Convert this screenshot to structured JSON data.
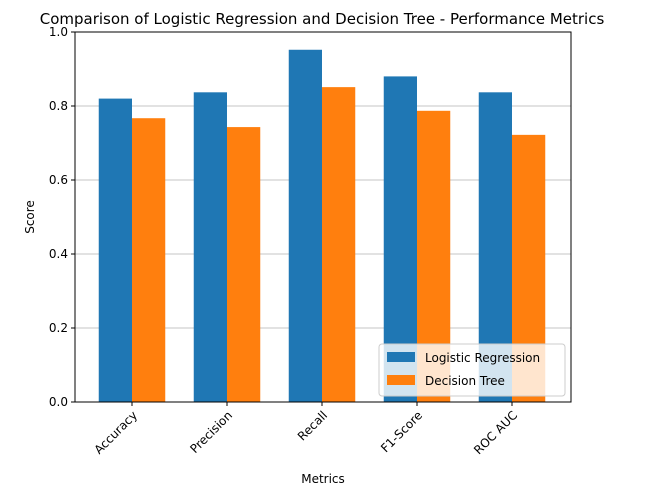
{
  "chart_data": {
    "type": "bar",
    "title": "Comparison of Logistic Regression and Decision Tree - Performance Metrics",
    "xlabel": "Metrics",
    "ylabel": "Score",
    "categories": [
      "Accuracy",
      "Precision",
      "Recall",
      "F1-Score",
      "ROC AUC"
    ],
    "series": [
      {
        "name": "Logistic Regression",
        "color": "#1f77b4",
        "values": [
          0.82,
          0.837,
          0.952,
          0.88,
          0.837
        ]
      },
      {
        "name": "Decision Tree",
        "color": "#ff7f0e",
        "values": [
          0.767,
          0.743,
          0.851,
          0.787,
          0.722
        ]
      }
    ],
    "ylim": [
      0,
      1.0
    ],
    "yticks": [
      "0.0",
      "0.2",
      "0.4",
      "0.6",
      "0.8",
      "1.0"
    ],
    "grid": "horizontal",
    "legend_position": "lower-right",
    "xtick_rotation": "45 degrees"
  }
}
